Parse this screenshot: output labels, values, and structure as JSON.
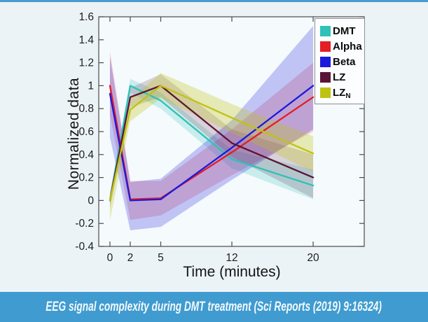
{
  "page": {
    "caption": "EEG signal complexity during DMT treatment (Sci Reports (2019) 9:16324)"
  },
  "colors": {
    "caption_bar": "#3f9bd0",
    "top_strip": "#4a9bce",
    "page_bg": "#ecf3f7",
    "plot_bg": "#f5fafd",
    "axis": "#4b4b4b",
    "tick_text": "#1d1d1d"
  },
  "legend": {
    "items": [
      {
        "label": "DMT",
        "sub": ""
      },
      {
        "label": "Alpha",
        "sub": ""
      },
      {
        "label": "Beta",
        "sub": ""
      },
      {
        "label": "LZ",
        "sub": ""
      },
      {
        "label": "LZ",
        "sub": "N"
      }
    ]
  },
  "chart_data": {
    "type": "line",
    "title": "",
    "xlabel": "Time (minutes)",
    "ylabel": "Normalized data",
    "x": [
      0,
      2,
      5,
      12,
      20
    ],
    "xlim": [
      -1.1,
      25.03
    ],
    "ylim": [
      -0.4,
      1.6
    ],
    "xticks": [
      0,
      2,
      5,
      12,
      20
    ],
    "xtick_labels": [
      "0",
      "2",
      "5",
      "12",
      "20"
    ],
    "yticks": [
      -0.4,
      -0.2,
      0,
      0.2,
      0.4,
      0.6,
      0.8,
      1,
      1.2,
      1.4,
      1.6
    ],
    "ytick_labels": [
      "-0.4",
      "-0.2",
      "0",
      "0.2",
      "0.4",
      "0.6",
      "0.8",
      "1",
      "1.2",
      "1.4",
      "1.6"
    ],
    "grid": false,
    "legend_position": "top-right",
    "series": [
      {
        "name": "DMT",
        "color": "#2fc1b8",
        "band_opacity": 0.22,
        "values": [
          0.0,
          1.0,
          0.87,
          0.36,
          0.13
        ],
        "band_lower": [
          -0.05,
          0.94,
          0.8,
          0.28,
          0.01
        ],
        "band_upper": [
          0.05,
          1.06,
          0.94,
          0.44,
          0.27
        ]
      },
      {
        "name": "Alpha",
        "color": "#e51d25",
        "band_opacity": 0.2,
        "values": [
          1.0,
          0.01,
          0.02,
          0.42,
          0.9
        ],
        "band_lower": [
          0.75,
          -0.17,
          -0.13,
          0.22,
          0.6
        ],
        "band_upper": [
          1.3,
          0.17,
          0.17,
          0.62,
          1.2
        ]
      },
      {
        "name": "Beta",
        "color": "#1b1add",
        "band_opacity": 0.24,
        "values": [
          0.93,
          0.0,
          0.01,
          0.46,
          1.0
        ],
        "band_lower": [
          0.55,
          -0.26,
          -0.23,
          0.18,
          0.62
        ],
        "band_upper": [
          1.25,
          0.16,
          0.19,
          0.7,
          1.52
        ]
      },
      {
        "name": "LZ",
        "color": "#5a1535",
        "band_opacity": 0.18,
        "values": [
          0.0,
          0.9,
          1.0,
          0.5,
          0.2
        ],
        "band_lower": [
          -0.07,
          0.81,
          0.9,
          0.38,
          0.02
        ],
        "band_upper": [
          0.07,
          0.98,
          1.1,
          0.62,
          0.4
        ]
      },
      {
        "name": "LZN",
        "color": "#c0c213",
        "band_opacity": 0.3,
        "values": [
          0.0,
          0.79,
          1.0,
          0.72,
          0.41
        ],
        "band_lower": [
          -0.17,
          0.69,
          0.89,
          0.59,
          0.25
        ],
        "band_upper": [
          0.04,
          0.88,
          1.11,
          0.84,
          0.56
        ]
      }
    ]
  }
}
